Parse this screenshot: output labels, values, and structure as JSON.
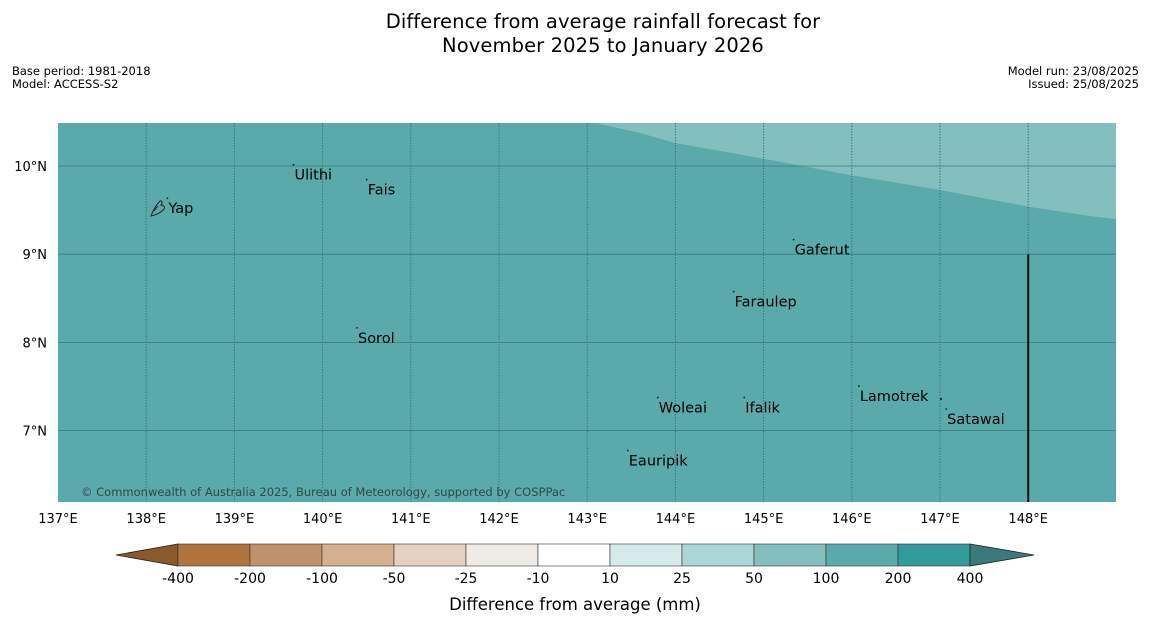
{
  "title_line1": "Difference from average rainfall forecast for",
  "title_line2": "November 2025 to January 2026",
  "meta_left": {
    "base_period": "Base period: 1981-2018",
    "model": "Model: ACCESS-S2"
  },
  "meta_right": {
    "model_run": "Model run: 23/08/2025",
    "issued": "Issued: 25/08/2025"
  },
  "map": {
    "lon_range": [
      137,
      149
    ],
    "lat_range": [
      6.2,
      10.5
    ],
    "lon_ticks": [
      "137°E",
      "138°E",
      "139°E",
      "140°E",
      "141°E",
      "142°E",
      "143°E",
      "144°E",
      "145°E",
      "146°E",
      "147°E",
      "148°E"
    ],
    "lat_ticks": [
      "10°N",
      "9°N",
      "8°N",
      "7°N"
    ],
    "fill_colors": {
      "base": "#5aaaab",
      "wetter_region": "#83bfbf",
      "gridline": "#2b6f70"
    },
    "places": [
      {
        "name": "Yap",
        "lon": 138.24,
        "lat": 9.51
      },
      {
        "name": "Ulithi",
        "lon": 139.67,
        "lat": 9.89
      },
      {
        "name": "Fais",
        "lon": 140.5,
        "lat": 9.72
      },
      {
        "name": "Gaferut",
        "lon": 145.34,
        "lat": 9.04
      },
      {
        "name": "Faraulep",
        "lon": 144.66,
        "lat": 8.45
      },
      {
        "name": "Sorol",
        "lon": 140.39,
        "lat": 8.04
      },
      {
        "name": "Lamotrek",
        "lon": 146.08,
        "lat": 7.38
      },
      {
        "name": "Woleai",
        "lon": 143.8,
        "lat": 7.25
      },
      {
        "name": "Ifalik",
        "lon": 144.78,
        "lat": 7.25
      },
      {
        "name": "Satawal",
        "lon": 147.07,
        "lat": 7.12
      },
      {
        "name": "Eauripik",
        "lon": 143.46,
        "lat": 6.65
      }
    ],
    "copyright": "© Commonwealth of Australia 2025, Bureau of Meteorology, supported by COSPPac"
  },
  "colorbar": {
    "tick_labels": [
      "-400",
      "-200",
      "-100",
      "-50",
      "-25",
      "-10",
      "10",
      "25",
      "50",
      "100",
      "200",
      "400"
    ],
    "colors": [
      "#8b5a2b",
      "#b0733c",
      "#c1926a",
      "#d4b08f",
      "#e4d1bf",
      "#efebe6",
      "#ffffff",
      "#d5eaea",
      "#acd5d5",
      "#83bfbf",
      "#5aaaab",
      "#329a9a",
      "#3a7a7a"
    ],
    "label": "Difference from average (mm)"
  }
}
